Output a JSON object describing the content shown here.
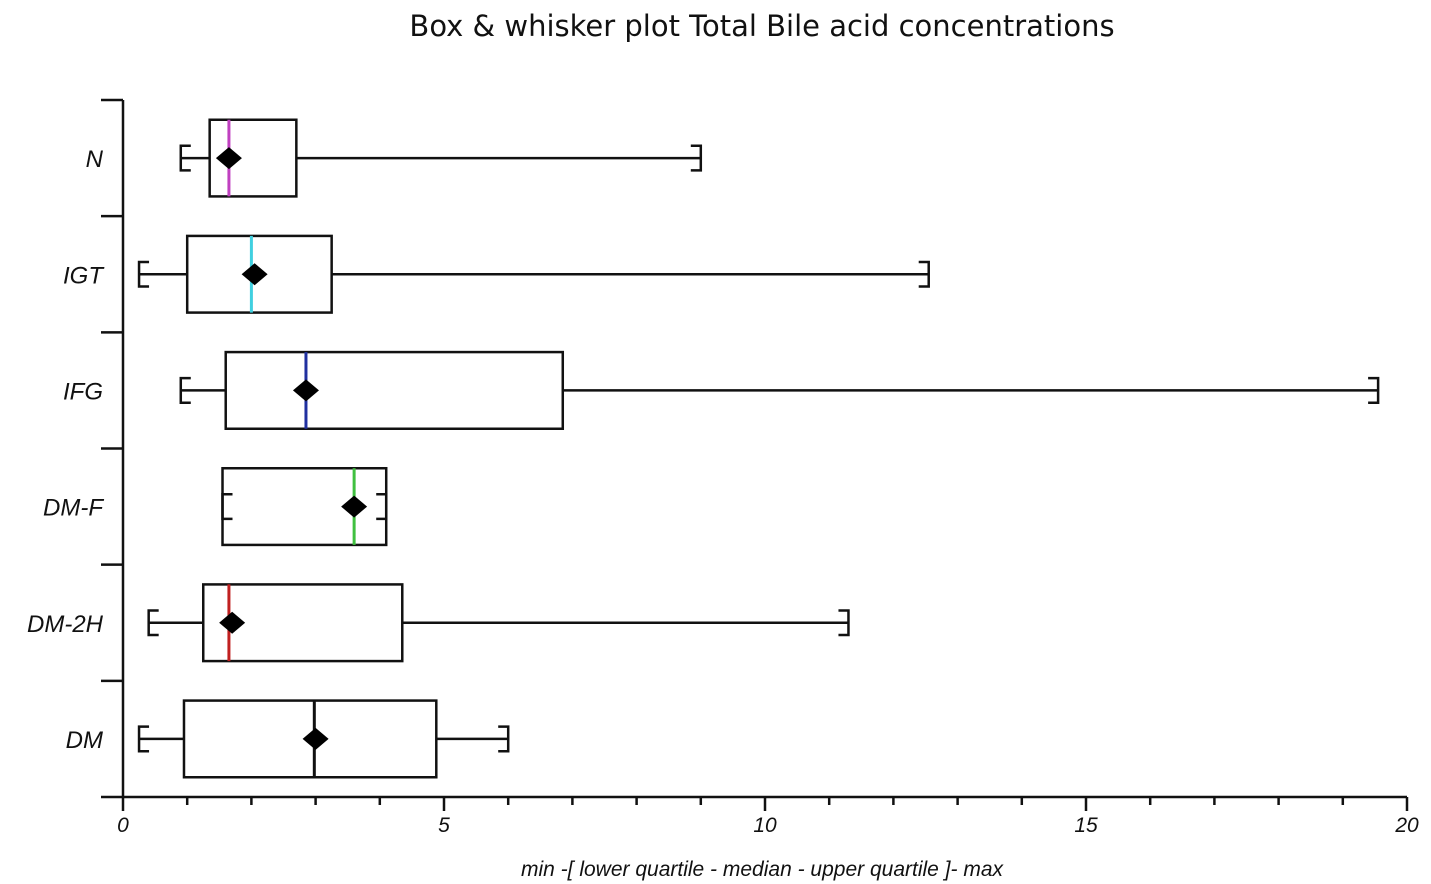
{
  "chart_data": {
    "type": "boxplot",
    "orientation": "horizontal",
    "title": "Box & whisker plot Total Bile acid concentrations",
    "xlabel": "min -[ lower quartile - median - upper quartile ]- max",
    "ylabel": "",
    "xlim": [
      0,
      20
    ],
    "xticks": [
      "0",
      "5",
      "10",
      "15",
      "20"
    ],
    "grid": false,
    "categories": [
      "N",
      "IGT",
      "IFG",
      "DM-F",
      "DM-2H",
      "DM"
    ],
    "series": [
      {
        "category": "N",
        "min": 0.9,
        "q1": 1.35,
        "median": 1.65,
        "mean": 1.65,
        "q3": 2.7,
        "max": 9.0,
        "median_color": "#c040c0"
      },
      {
        "category": "IGT",
        "min": 0.25,
        "q1": 1.0,
        "median": 2.0,
        "mean": 2.05,
        "q3": 3.25,
        "max": 12.55,
        "median_color": "#40d0e0"
      },
      {
        "category": "IFG",
        "min": 0.9,
        "q1": 1.6,
        "median": 2.85,
        "mean": 2.85,
        "q3": 6.85,
        "max": 19.55,
        "median_color": "#2030a0"
      },
      {
        "category": "DM-F",
        "min": 1.55,
        "q1": 1.55,
        "median": 3.6,
        "mean": 3.6,
        "q3": 4.1,
        "max": 4.1,
        "median_color": "#40c040"
      },
      {
        "category": "DM-2H",
        "min": 0.4,
        "q1": 1.25,
        "median": 1.65,
        "mean": 1.7,
        "q3": 4.35,
        "max": 11.3,
        "median_color": "#c02020"
      },
      {
        "category": "DM",
        "min": 0.25,
        "q1": 0.95,
        "median": 2.98,
        "mean": 3.0,
        "q3": 4.88,
        "max": 6.0,
        "median_color": "#111111"
      }
    ]
  }
}
